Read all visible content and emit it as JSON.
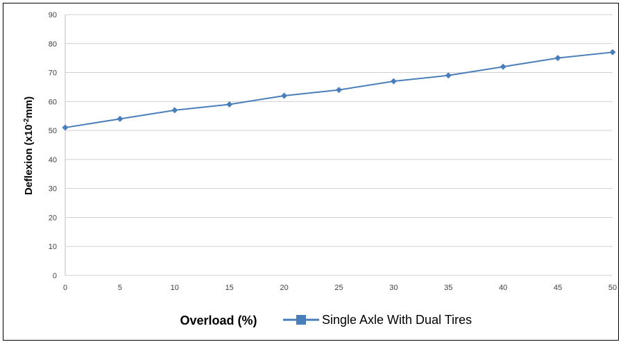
{
  "chart_data": {
    "type": "line",
    "title": "",
    "xlabel": "Overload (%)",
    "ylabel_main": "Deflexion (x10",
    "ylabel_sup": "-2",
    "ylabel_end": "mm)",
    "x": [
      0,
      5,
      10,
      15,
      20,
      25,
      30,
      35,
      40,
      45,
      50
    ],
    "xlim": [
      0,
      50
    ],
    "ylim": [
      0,
      90
    ],
    "yticks": [
      0,
      10,
      20,
      30,
      40,
      50,
      60,
      70,
      80,
      90
    ],
    "grid": true,
    "legend_position": "bottom",
    "series": [
      {
        "name": "Single Axle With Dual Tires",
        "color": "#4a7ebb",
        "marker": "diamond",
        "values": [
          51,
          54,
          57,
          59,
          62,
          64,
          67,
          69,
          72,
          75,
          77
        ]
      }
    ]
  }
}
